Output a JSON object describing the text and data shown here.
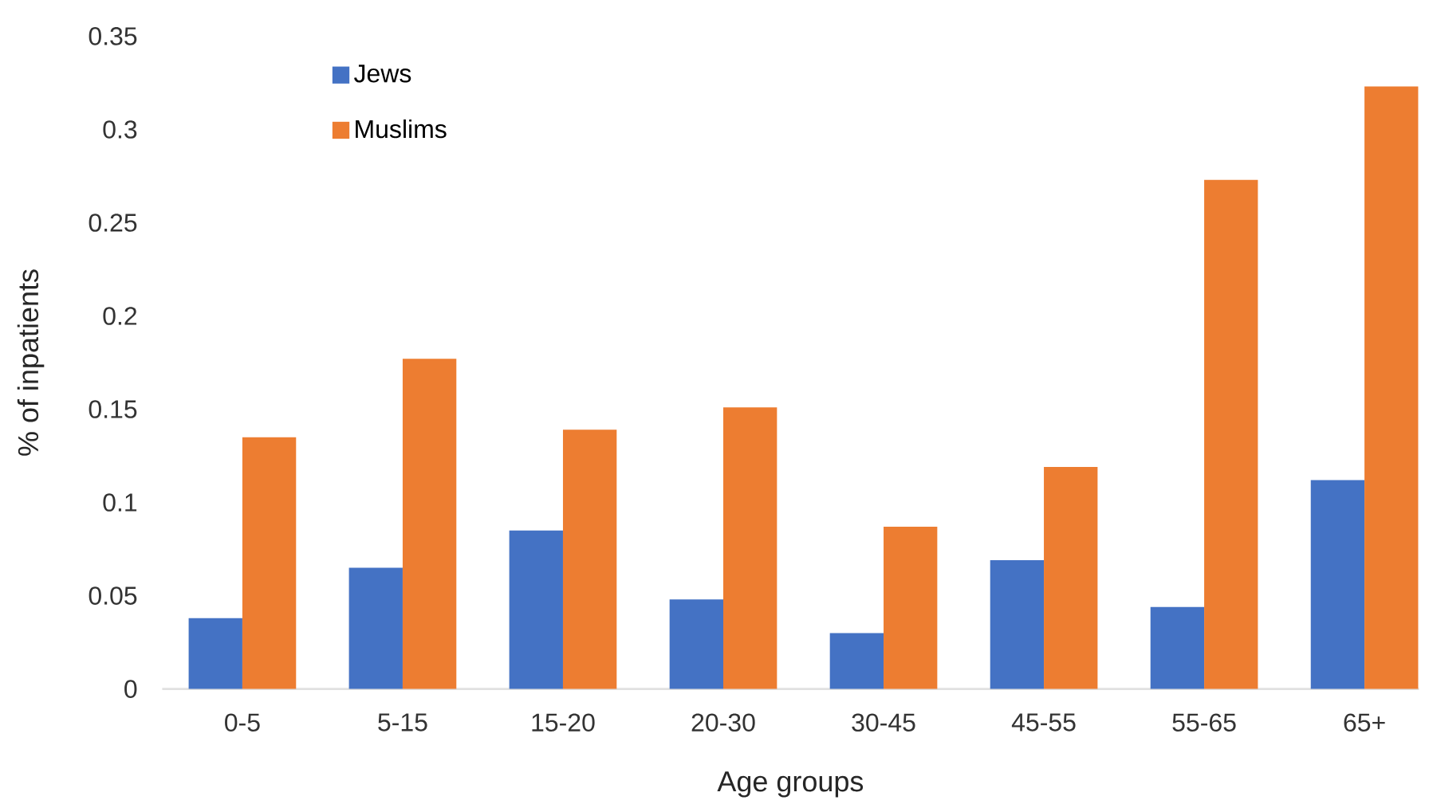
{
  "chart_data": {
    "type": "bar",
    "xlabel": "Age groups",
    "ylabel": "% of inpatients",
    "categories": [
      "0-5",
      "5-15",
      "15-20",
      "20-30",
      "30-45",
      "45-55",
      "55-65",
      "65+"
    ],
    "series": [
      {
        "name": "Jews",
        "color": "#4472c4",
        "values": [
          0.038,
          0.065,
          0.085,
          0.048,
          0.03,
          0.069,
          0.044,
          0.112
        ]
      },
      {
        "name": "Muslims",
        "color": "#ed7d31",
        "values": [
          0.135,
          0.177,
          0.139,
          0.151,
          0.087,
          0.119,
          0.273,
          0.323
        ]
      }
    ],
    "ylim": [
      0,
      0.35
    ],
    "yticks": [
      0,
      0.05,
      0.1,
      0.15,
      0.2,
      0.25,
      0.3,
      0.35
    ],
    "grid": false,
    "legend": "top left"
  }
}
